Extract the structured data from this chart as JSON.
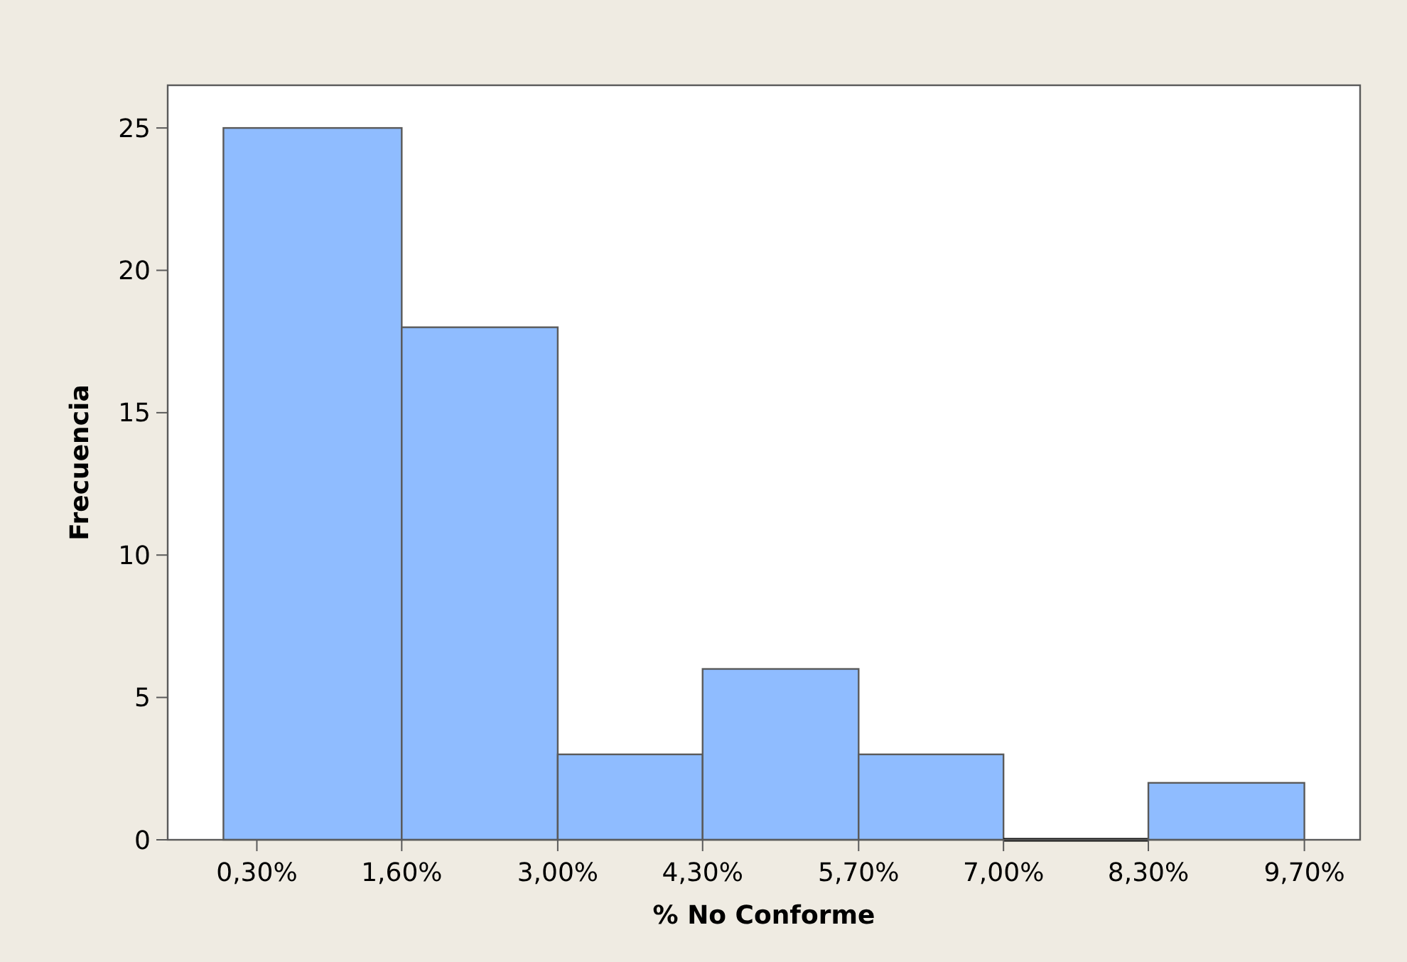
{
  "chart_data": {
    "type": "histogram",
    "xlabel": "% No Conforme",
    "ylabel": "Frecuencia",
    "bins": [
      0,
      1.6,
      3.0,
      4.3,
      5.7,
      7.0,
      8.3,
      9.7
    ],
    "values": [
      25,
      18,
      3,
      6,
      3,
      0,
      2
    ],
    "color": "#8fbcff",
    "xlim": [
      -0.5,
      10.2
    ],
    "ylim": [
      0,
      26.5
    ],
    "xticks": [
      {
        "value": 0.3,
        "label": "0,30%"
      },
      {
        "value": 1.6,
        "label": "1,60%"
      },
      {
        "value": 3.0,
        "label": "3,00%"
      },
      {
        "value": 4.3,
        "label": "4,30%"
      },
      {
        "value": 5.7,
        "label": "5,70%"
      },
      {
        "value": 7.0,
        "label": "7,00%"
      },
      {
        "value": 8.3,
        "label": "8,30%"
      },
      {
        "value": 9.7,
        "label": "9,70%"
      }
    ],
    "yticks": [
      0,
      5,
      10,
      15,
      20,
      25
    ]
  }
}
